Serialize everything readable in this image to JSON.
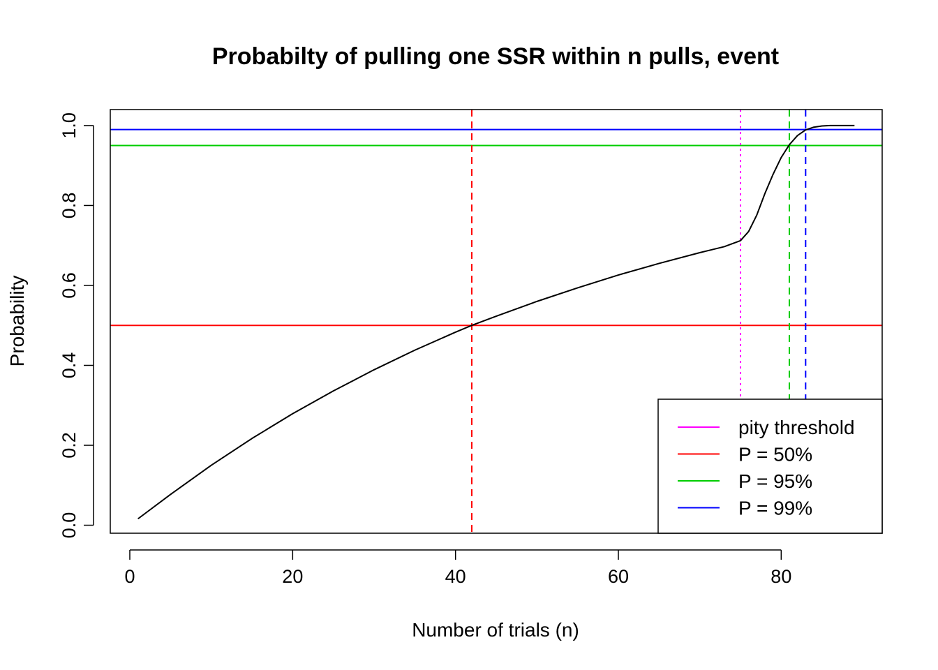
{
  "chart_data": {
    "type": "line",
    "title": "Probabilty of pulling one SSR within n pulls, event",
    "xlabel": "Number of trials (n)",
    "ylabel": "Probability",
    "xlim": [
      -2.4,
      92.4
    ],
    "ylim": [
      -0.02,
      1.04
    ],
    "x_ticks": [
      0,
      20,
      40,
      60,
      80
    ],
    "y_ticks": [
      0.0,
      0.2,
      0.4,
      0.6,
      0.8,
      1.0
    ],
    "x_tick_labels": [
      "0",
      "20",
      "40",
      "60",
      "80"
    ],
    "y_tick_labels": [
      "0.0",
      "0.2",
      "0.4",
      "0.6",
      "0.8",
      "1.0"
    ],
    "grid": false,
    "series": [
      {
        "color": "#000000",
        "x": [
          1,
          5,
          10,
          15,
          20,
          25,
          30,
          35,
          40,
          42,
          45,
          50,
          55,
          60,
          65,
          70,
          73,
          75,
          76,
          77,
          78,
          79,
          80,
          81,
          82,
          83,
          84,
          85,
          86,
          87,
          88,
          89
        ],
        "y": [
          0.016,
          0.077,
          0.15,
          0.217,
          0.279,
          0.336,
          0.389,
          0.438,
          0.483,
          0.5,
          0.523,
          0.56,
          0.594,
          0.626,
          0.655,
          0.682,
          0.697,
          0.712,
          0.735,
          0.776,
          0.83,
          0.878,
          0.92,
          0.952,
          0.975,
          0.989,
          0.996,
          0.999,
          1.0,
          1.0,
          1.0,
          1.0
        ]
      }
    ],
    "hlines": [
      {
        "y": 0.5,
        "color": "#ff0000",
        "style": "solid"
      },
      {
        "y": 0.95,
        "color": "#00cd00",
        "style": "solid"
      },
      {
        "y": 0.99,
        "color": "#0000ff",
        "style": "solid"
      }
    ],
    "vlines": [
      {
        "x": 42,
        "color": "#ff0000",
        "style": "dashed"
      },
      {
        "x": 75,
        "color": "#ff00ff",
        "style": "dotted"
      },
      {
        "x": 81,
        "color": "#00cd00",
        "style": "dashed"
      },
      {
        "x": 83,
        "color": "#0000ff",
        "style": "dashed"
      }
    ],
    "legend": {
      "position": "bottom-right",
      "entries": [
        {
          "label": "pity threshold",
          "color": "#ff00ff"
        },
        {
          "label": "P = 50%",
          "color": "#ff0000"
        },
        {
          "label": "P = 95%",
          "color": "#00cd00"
        },
        {
          "label": "P = 99%",
          "color": "#0000ff"
        }
      ]
    }
  }
}
